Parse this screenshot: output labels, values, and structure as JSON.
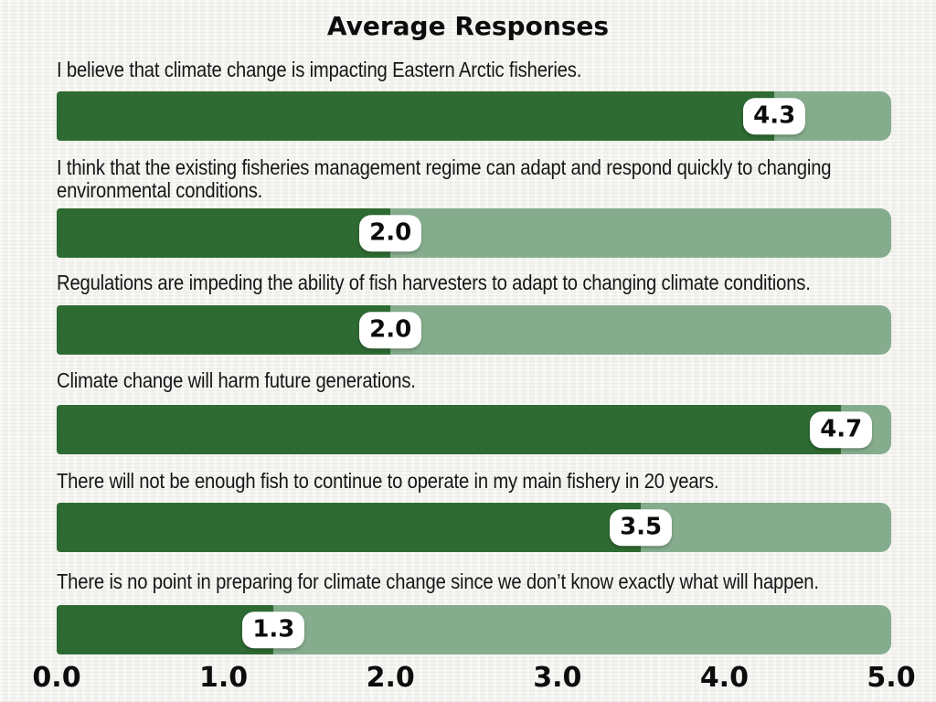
{
  "title": "Average Responses",
  "colors": {
    "bar_fill": "#2e6b32",
    "bar_track": "#85ad8d",
    "badge_background": "#ffffff",
    "text": "#111111",
    "background": "#f4f3f0"
  },
  "chart_data": {
    "type": "bar",
    "orientation": "horizontal",
    "title": "Average Responses",
    "xlabel": "",
    "ylabel": "",
    "xlim": [
      0,
      5
    ],
    "x_ticks": [
      "0.0",
      "1.0",
      "2.0",
      "3.0",
      "4.0",
      "5.0"
    ],
    "grid": false,
    "legend": false,
    "rows": [
      {
        "label": "I believe that climate change is impacting Eastern Arctic fisheries.",
        "value": 4.3,
        "value_label": "4.3"
      },
      {
        "label": "I think that the existing fisheries management regime can adapt and respond quickly to changing environmental conditions.",
        "value": 2.0,
        "value_label": "2.0"
      },
      {
        "label": "Regulations are impeding the ability of fish harvesters to adapt to changing climate conditions.",
        "value": 2.0,
        "value_label": "2.0"
      },
      {
        "label": "Climate change will harm future generations.",
        "value": 4.7,
        "value_label": "4.7"
      },
      {
        "label": "There will not be enough fish to continue to operate in my main fishery in 20 years.",
        "value": 3.5,
        "value_label": "3.5"
      },
      {
        "label": "There is no point in preparing for climate change since we don’t know exactly what will happen.",
        "value": 1.3,
        "value_label": "1.3"
      }
    ]
  }
}
